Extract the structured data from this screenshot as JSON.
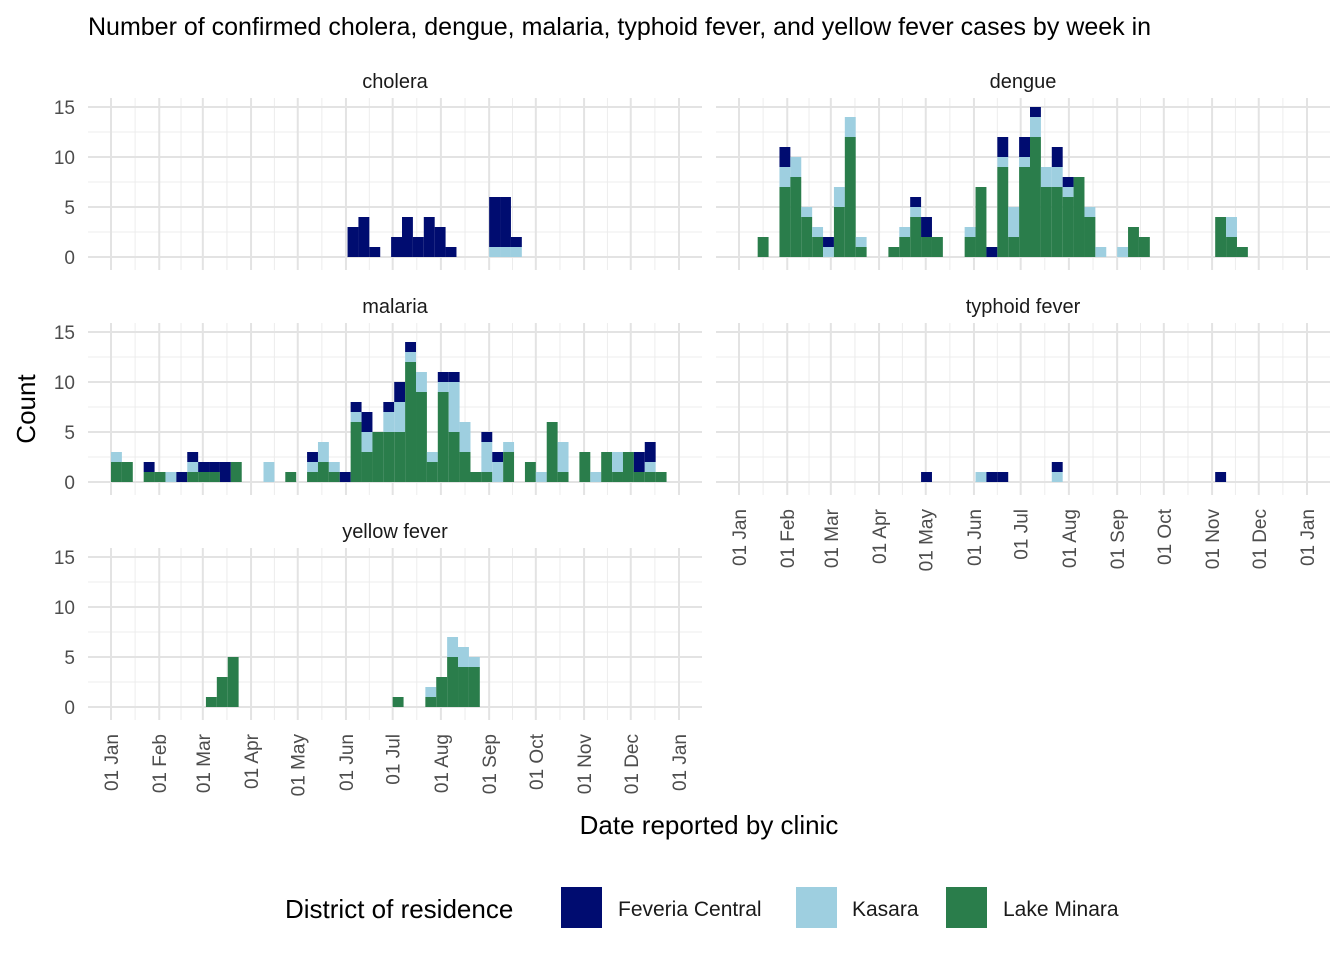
{
  "chart_data": {
    "type": "bar",
    "subtype": "stacked-weekly-histogram-faceted",
    "title": "Number of confirmed cholera, dengue, malaria, typhoid fever, and yellow fever cases by week in",
    "xlabel": "Date reported by clinic",
    "ylabel": "Count",
    "x_tick_labels": [
      "01 Jan",
      "01 Feb",
      "01 Mar",
      "01 Apr",
      "01 May",
      "01 Jun",
      "01 Jul",
      "01 Aug",
      "01 Sep",
      "01 Oct",
      "01 Nov",
      "01 Dec",
      "01 Jan"
    ],
    "y_ticks": [
      0,
      5,
      10,
      15
    ],
    "ylim": [
      0,
      15
    ],
    "grid": true,
    "legend": {
      "title": "District of residence",
      "position": "bottom",
      "entries": [
        {
          "name": "Feveria Central",
          "color": "#000c70"
        },
        {
          "name": "Kasara",
          "color": "#9ecfe0"
        },
        {
          "name": "Lake Minara",
          "color": "#2a7d4b"
        }
      ]
    },
    "facets": [
      {
        "name": "cholera",
        "bars": [
          {
            "week_start": "Jun 02",
            "Feveria Central": 3,
            "Kasara": 0,
            "Lake Minara": 0
          },
          {
            "week_start": "Jun 09",
            "Feveria Central": 4,
            "Kasara": 0,
            "Lake Minara": 0
          },
          {
            "week_start": "Jun 16",
            "Feveria Central": 1,
            "Kasara": 0,
            "Lake Minara": 0
          },
          {
            "week_start": "Jun 30",
            "Feveria Central": 2,
            "Kasara": 0,
            "Lake Minara": 0
          },
          {
            "week_start": "Jul 07",
            "Feveria Central": 4,
            "Kasara": 0,
            "Lake Minara": 0
          },
          {
            "week_start": "Jul 14",
            "Feveria Central": 2,
            "Kasara": 0,
            "Lake Minara": 0
          },
          {
            "week_start": "Jul 21",
            "Feveria Central": 4,
            "Kasara": 0,
            "Lake Minara": 0
          },
          {
            "week_start": "Jul 28",
            "Feveria Central": 3,
            "Kasara": 0,
            "Lake Minara": 0
          },
          {
            "week_start": "Aug 04",
            "Feveria Central": 1,
            "Kasara": 0,
            "Lake Minara": 0
          },
          {
            "week_start": "Sep 01",
            "Feveria Central": 5,
            "Kasara": 1,
            "Lake Minara": 0
          },
          {
            "week_start": "Sep 08",
            "Feveria Central": 5,
            "Kasara": 1,
            "Lake Minara": 0
          },
          {
            "week_start": "Sep 15",
            "Feveria Central": 1,
            "Kasara": 1,
            "Lake Minara": 0
          }
        ]
      },
      {
        "name": "dengue",
        "bars": [
          {
            "week_start": "Jan 13",
            "Feveria Central": 0,
            "Kasara": 0,
            "Lake Minara": 2
          },
          {
            "week_start": "Jan 27",
            "Feveria Central": 2,
            "Kasara": 2,
            "Lake Minara": 7
          },
          {
            "week_start": "Feb 03",
            "Feveria Central": 0,
            "Kasara": 2,
            "Lake Minara": 8
          },
          {
            "week_start": "Feb 10",
            "Feveria Central": 0,
            "Kasara": 1,
            "Lake Minara": 4
          },
          {
            "week_start": "Feb 17",
            "Feveria Central": 0,
            "Kasara": 1,
            "Lake Minara": 2
          },
          {
            "week_start": "Feb 24",
            "Feveria Central": 1,
            "Kasara": 1,
            "Lake Minara": 0
          },
          {
            "week_start": "Mar 03",
            "Feveria Central": 0,
            "Kasara": 2,
            "Lake Minara": 5
          },
          {
            "week_start": "Mar 10",
            "Feveria Central": 0,
            "Kasara": 2,
            "Lake Minara": 12
          },
          {
            "week_start": "Mar 17",
            "Feveria Central": 0,
            "Kasara": 1,
            "Lake Minara": 1
          },
          {
            "week_start": "Apr 07",
            "Feveria Central": 0,
            "Kasara": 0,
            "Lake Minara": 1
          },
          {
            "week_start": "Apr 14",
            "Feveria Central": 0,
            "Kasara": 1,
            "Lake Minara": 2
          },
          {
            "week_start": "Apr 21",
            "Feveria Central": 1,
            "Kasara": 1,
            "Lake Minara": 4
          },
          {
            "week_start": "Apr 28",
            "Feveria Central": 2,
            "Kasara": 0,
            "Lake Minara": 2
          },
          {
            "week_start": "May 05",
            "Feveria Central": 0,
            "Kasara": 0,
            "Lake Minara": 2
          },
          {
            "week_start": "May 26",
            "Feveria Central": 0,
            "Kasara": 1,
            "Lake Minara": 2
          },
          {
            "week_start": "Jun 02",
            "Feveria Central": 0,
            "Kasara": 0,
            "Lake Minara": 7
          },
          {
            "week_start": "Jun 09",
            "Feveria Central": 1,
            "Kasara": 0,
            "Lake Minara": 0
          },
          {
            "week_start": "Jun 16",
            "Feveria Central": 2,
            "Kasara": 1,
            "Lake Minara": 9
          },
          {
            "week_start": "Jun 23",
            "Feveria Central": 0,
            "Kasara": 3,
            "Lake Minara": 2
          },
          {
            "week_start": "Jun 30",
            "Feveria Central": 2,
            "Kasara": 1,
            "Lake Minara": 9
          },
          {
            "week_start": "Jul 07",
            "Feveria Central": 1,
            "Kasara": 2,
            "Lake Minara": 12
          },
          {
            "week_start": "Jul 14",
            "Feveria Central": 0,
            "Kasara": 2,
            "Lake Minara": 7
          },
          {
            "week_start": "Jul 21",
            "Feveria Central": 2,
            "Kasara": 2,
            "Lake Minara": 7
          },
          {
            "week_start": "Jul 28",
            "Feveria Central": 1,
            "Kasara": 1,
            "Lake Minara": 6
          },
          {
            "week_start": "Aug 04",
            "Feveria Central": 0,
            "Kasara": 0,
            "Lake Minara": 8
          },
          {
            "week_start": "Aug 11",
            "Feveria Central": 0,
            "Kasara": 1,
            "Lake Minara": 4
          },
          {
            "week_start": "Aug 18",
            "Feveria Central": 0,
            "Kasara": 1,
            "Lake Minara": 0
          },
          {
            "week_start": "Sep 01",
            "Feveria Central": 0,
            "Kasara": 1,
            "Lake Minara": 0
          },
          {
            "week_start": "Sep 08",
            "Feveria Central": 0,
            "Kasara": 0,
            "Lake Minara": 3
          },
          {
            "week_start": "Sep 15",
            "Feveria Central": 0,
            "Kasara": 0,
            "Lake Minara": 2
          },
          {
            "week_start": "Nov 03",
            "Feveria Central": 0,
            "Kasara": 0,
            "Lake Minara": 4
          },
          {
            "week_start": "Nov 10",
            "Feveria Central": 0,
            "Kasara": 2,
            "Lake Minara": 2
          },
          {
            "week_start": "Nov 17",
            "Feveria Central": 0,
            "Kasara": 0,
            "Lake Minara": 1
          }
        ]
      },
      {
        "name": "malaria",
        "bars": [
          {
            "week_start": "Jan 01",
            "Feveria Central": 0,
            "Kasara": 1,
            "Lake Minara": 2
          },
          {
            "week_start": "Jan 08",
            "Feveria Central": 0,
            "Kasara": 0,
            "Lake Minara": 2
          },
          {
            "week_start": "Jan 22",
            "Feveria Central": 1,
            "Kasara": 0,
            "Lake Minara": 1
          },
          {
            "week_start": "Jan 29",
            "Feveria Central": 0,
            "Kasara": 0,
            "Lake Minara": 1
          },
          {
            "week_start": "Feb 05",
            "Feveria Central": 0,
            "Kasara": 1,
            "Lake Minara": 0
          },
          {
            "week_start": "Feb 12",
            "Feveria Central": 1,
            "Kasara": 0,
            "Lake Minara": 0
          },
          {
            "week_start": "Feb 19",
            "Feveria Central": 1,
            "Kasara": 1,
            "Lake Minara": 1
          },
          {
            "week_start": "Feb 26",
            "Feveria Central": 1,
            "Kasara": 0,
            "Lake Minara": 1
          },
          {
            "week_start": "Mar 05",
            "Feveria Central": 1,
            "Kasara": 0,
            "Lake Minara": 1
          },
          {
            "week_start": "Mar 12",
            "Feveria Central": 2,
            "Kasara": 0,
            "Lake Minara": 0
          },
          {
            "week_start": "Mar 19",
            "Feveria Central": 0,
            "Kasara": 0,
            "Lake Minara": 2
          },
          {
            "week_start": "Apr 09",
            "Feveria Central": 0,
            "Kasara": 2,
            "Lake Minara": 0
          },
          {
            "week_start": "Apr 23",
            "Feveria Central": 0,
            "Kasara": 0,
            "Lake Minara": 1
          },
          {
            "week_start": "May 07",
            "Feveria Central": 1,
            "Kasara": 1,
            "Lake Minara": 1
          },
          {
            "week_start": "May 14",
            "Feveria Central": 0,
            "Kasara": 2,
            "Lake Minara": 2
          },
          {
            "week_start": "May 21",
            "Feveria Central": 0,
            "Kasara": 1,
            "Lake Minara": 1
          },
          {
            "week_start": "May 28",
            "Feveria Central": 1,
            "Kasara": 0,
            "Lake Minara": 0
          },
          {
            "week_start": "Jun 04",
            "Feveria Central": 1,
            "Kasara": 1,
            "Lake Minara": 6
          },
          {
            "week_start": "Jun 11",
            "Feveria Central": 2,
            "Kasara": 2,
            "Lake Minara": 3
          },
          {
            "week_start": "Jun 18",
            "Feveria Central": 0,
            "Kasara": 0,
            "Lake Minara": 5
          },
          {
            "week_start": "Jun 25",
            "Feveria Central": 1,
            "Kasara": 2,
            "Lake Minara": 5
          },
          {
            "week_start": "Jul 02",
            "Feveria Central": 2,
            "Kasara": 3,
            "Lake Minara": 5
          },
          {
            "week_start": "Jul 09",
            "Feveria Central": 1,
            "Kasara": 1,
            "Lake Minara": 12
          },
          {
            "week_start": "Jul 16",
            "Feveria Central": 0,
            "Kasara": 2,
            "Lake Minara": 9
          },
          {
            "week_start": "Jul 23",
            "Feveria Central": 0,
            "Kasara": 1,
            "Lake Minara": 2
          },
          {
            "week_start": "Jul 30",
            "Feveria Central": 1,
            "Kasara": 1,
            "Lake Minara": 9
          },
          {
            "week_start": "Aug 06",
            "Feveria Central": 1,
            "Kasara": 5,
            "Lake Minara": 5
          },
          {
            "week_start": "Aug 13",
            "Feveria Central": 0,
            "Kasara": 3,
            "Lake Minara": 3
          },
          {
            "week_start": "Aug 20",
            "Feveria Central": 0,
            "Kasara": 0,
            "Lake Minara": 1
          },
          {
            "week_start": "Aug 27",
            "Feveria Central": 1,
            "Kasara": 3,
            "Lake Minara": 1
          },
          {
            "week_start": "Sep 03",
            "Feveria Central": 1,
            "Kasara": 2,
            "Lake Minara": 0
          },
          {
            "week_start": "Sep 10",
            "Feveria Central": 0,
            "Kasara": 1,
            "Lake Minara": 3
          },
          {
            "week_start": "Sep 24",
            "Feveria Central": 0,
            "Kasara": 0,
            "Lake Minara": 2
          },
          {
            "week_start": "Oct 01",
            "Feveria Central": 0,
            "Kasara": 1,
            "Lake Minara": 0
          },
          {
            "week_start": "Oct 08",
            "Feveria Central": 0,
            "Kasara": 0,
            "Lake Minara": 6
          },
          {
            "week_start": "Oct 15",
            "Feveria Central": 0,
            "Kasara": 3,
            "Lake Minara": 1
          },
          {
            "week_start": "Oct 29",
            "Feveria Central": 0,
            "Kasara": 0,
            "Lake Minara": 3
          },
          {
            "week_start": "Nov 05",
            "Feveria Central": 0,
            "Kasara": 1,
            "Lake Minara": 0
          },
          {
            "week_start": "Nov 12",
            "Feveria Central": 0,
            "Kasara": 0,
            "Lake Minara": 3
          },
          {
            "week_start": "Nov 19",
            "Feveria Central": 0,
            "Kasara": 2,
            "Lake Minara": 1
          },
          {
            "week_start": "Nov 26",
            "Feveria Central": 0,
            "Kasara": 0,
            "Lake Minara": 3
          },
          {
            "week_start": "Dec 03",
            "Feveria Central": 2,
            "Kasara": 0,
            "Lake Minara": 1
          },
          {
            "week_start": "Dec 10",
            "Feveria Central": 2,
            "Kasara": 1,
            "Lake Minara": 1
          },
          {
            "week_start": "Dec 17",
            "Feveria Central": 0,
            "Kasara": 0,
            "Lake Minara": 1
          }
        ]
      },
      {
        "name": "typhoid fever",
        "bars": [
          {
            "week_start": "Apr 28",
            "Feveria Central": 1,
            "Kasara": 0,
            "Lake Minara": 0
          },
          {
            "week_start": "Jun 02",
            "Feveria Central": 0,
            "Kasara": 1,
            "Lake Minara": 0
          },
          {
            "week_start": "Jun 09",
            "Feveria Central": 1,
            "Kasara": 0,
            "Lake Minara": 0
          },
          {
            "week_start": "Jun 16",
            "Feveria Central": 1,
            "Kasara": 0,
            "Lake Minara": 0
          },
          {
            "week_start": "Jul 21",
            "Feveria Central": 1,
            "Kasara": 1,
            "Lake Minara": 0
          },
          {
            "week_start": "Nov 03",
            "Feveria Central": 1,
            "Kasara": 0,
            "Lake Minara": 0
          }
        ]
      },
      {
        "name": "yellow fever",
        "bars": [
          {
            "week_start": "Mar 03",
            "Feveria Central": 0,
            "Kasara": 0,
            "Lake Minara": 1
          },
          {
            "week_start": "Mar 10",
            "Feveria Central": 0,
            "Kasara": 0,
            "Lake Minara": 3
          },
          {
            "week_start": "Mar 17",
            "Feveria Central": 0,
            "Kasara": 0,
            "Lake Minara": 5
          },
          {
            "week_start": "Jul 01",
            "Feveria Central": 0,
            "Kasara": 0,
            "Lake Minara": 1
          },
          {
            "week_start": "Jul 22",
            "Feveria Central": 0,
            "Kasara": 1,
            "Lake Minara": 1
          },
          {
            "week_start": "Jul 29",
            "Feveria Central": 0,
            "Kasara": 0,
            "Lake Minara": 3
          },
          {
            "week_start": "Aug 05",
            "Feveria Central": 0,
            "Kasara": 2,
            "Lake Minara": 5
          },
          {
            "week_start": "Aug 12",
            "Feveria Central": 0,
            "Kasara": 2,
            "Lake Minara": 4
          },
          {
            "week_start": "Aug 19",
            "Feveria Central": 0,
            "Kasara": 1,
            "Lake Minara": 4
          }
        ]
      }
    ]
  }
}
